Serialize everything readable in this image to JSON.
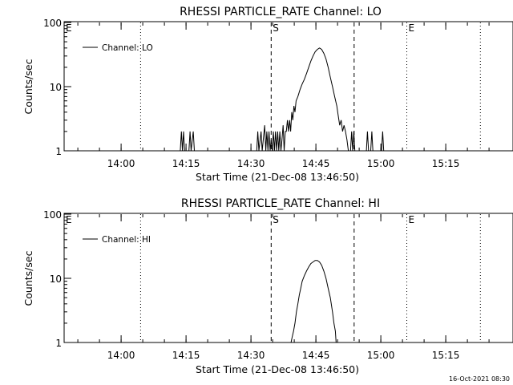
{
  "footer": {
    "timestamp": "16-Oct-2021 08:30"
  },
  "chart_data": [
    {
      "type": "line",
      "title": "RHESSI PARTICLE_RATE Channel: LO",
      "xlabel": "Start Time (21-Dec-08 13:46:50)",
      "ylabel": "Counts/sec",
      "yscale": "log",
      "xlim": [
        "13:46:50",
        "15:29:00"
      ],
      "ylim": [
        1,
        100
      ],
      "x_ticks": [
        "14:00",
        "14:15",
        "14:30",
        "14:45",
        "15:00",
        "15:15"
      ],
      "y_ticks": [
        "1",
        "10",
        "100"
      ],
      "legend": {
        "position": "top-left",
        "label": "Channel: LO"
      },
      "markers": [
        {
          "label": "E",
          "time": "13:46:50",
          "style": "dotted"
        },
        {
          "label": "",
          "time": "14:04:30",
          "style": "dotted"
        },
        {
          "label": "S",
          "time": "14:34:40",
          "style": "dashed"
        },
        {
          "label": "",
          "time": "14:53:50",
          "style": "dashed"
        },
        {
          "label": "E",
          "time": "15:06:00",
          "style": "dotted"
        },
        {
          "label": "",
          "time": "15:23:00",
          "style": "dotted"
        }
      ],
      "series": [
        {
          "name": "Channel: LO",
          "points": [
            [
              "14:13:40",
              1
            ],
            [
              "14:13:55",
              2
            ],
            [
              "14:14:10",
              1
            ],
            [
              "14:14:25",
              2
            ],
            [
              "14:14:40",
              1
            ],
            [
              "14:15:40",
              1
            ],
            [
              "14:15:55",
              2
            ],
            [
              "14:16:10",
              1
            ],
            [
              "14:16:40",
              2
            ],
            [
              "14:16:55",
              1
            ],
            [
              "14:31:20",
              1
            ],
            [
              "14:31:35",
              2
            ],
            [
              "14:31:50",
              1
            ],
            [
              "14:32:20",
              2
            ],
            [
              "14:32:35",
              1
            ],
            [
              "14:33:10",
              2.5
            ],
            [
              "14:33:25",
              1
            ],
            [
              "14:33:40",
              2
            ],
            [
              "14:33:55",
              1
            ],
            [
              "14:34:10",
              2
            ],
            [
              "14:34:25",
              1
            ],
            [
              "14:34:40",
              1.5
            ],
            [
              "14:34:55",
              1
            ],
            [
              "14:35:10",
              2
            ],
            [
              "14:35:25",
              1
            ],
            [
              "14:35:40",
              2
            ],
            [
              "14:35:55",
              1
            ],
            [
              "14:36:10",
              2
            ],
            [
              "14:36:25",
              1
            ],
            [
              "14:36:40",
              2
            ],
            [
              "14:36:55",
              1
            ],
            [
              "14:37:10",
              1.5
            ],
            [
              "14:37:25",
              2.5
            ],
            [
              "14:37:40",
              1
            ],
            [
              "14:37:55",
              2
            ],
            [
              "14:38:10",
              2
            ],
            [
              "14:38:25",
              3
            ],
            [
              "14:38:40",
              2
            ],
            [
              "14:38:55",
              3
            ],
            [
              "14:39:10",
              2
            ],
            [
              "14:39:25",
              4
            ],
            [
              "14:39:40",
              3
            ],
            [
              "14:39:55",
              5
            ],
            [
              "14:40:10",
              4
            ],
            [
              "14:40:25",
              6
            ],
            [
              "14:40:50",
              7
            ],
            [
              "14:41:20",
              9
            ],
            [
              "14:41:50",
              11
            ],
            [
              "14:42:20",
              13
            ],
            [
              "14:42:50",
              16
            ],
            [
              "14:43:20",
              20
            ],
            [
              "14:43:50",
              25
            ],
            [
              "14:44:20",
              30
            ],
            [
              "14:44:50",
              35
            ],
            [
              "14:45:20",
              38
            ],
            [
              "14:45:50",
              40
            ],
            [
              "14:46:20",
              38
            ],
            [
              "14:46:50",
              33
            ],
            [
              "14:47:20",
              27
            ],
            [
              "14:47:50",
              20
            ],
            [
              "14:48:20",
              14
            ],
            [
              "14:48:50",
              10
            ],
            [
              "14:49:20",
              7
            ],
            [
              "14:49:50",
              5
            ],
            [
              "14:50:10",
              3.5
            ],
            [
              "14:50:30",
              2.5
            ],
            [
              "14:50:50",
              3
            ],
            [
              "14:51:10",
              2
            ],
            [
              "14:51:30",
              2.5
            ],
            [
              "14:51:50",
              2
            ],
            [
              "14:52:10",
              1.5
            ],
            [
              "14:52:30",
              1
            ],
            [
              "14:53:00",
              1
            ],
            [
              "14:53:15",
              2
            ],
            [
              "14:53:30",
              1
            ],
            [
              "14:53:45",
              2
            ],
            [
              "14:54:00",
              1
            ],
            [
              "14:56:40",
              1
            ],
            [
              "14:56:55",
              2
            ],
            [
              "14:57:10",
              1
            ],
            [
              "14:57:40",
              1
            ],
            [
              "14:57:55",
              2
            ],
            [
              "14:58:10",
              1
            ],
            [
              "15:00:10",
              1
            ],
            [
              "15:00:25",
              2
            ],
            [
              "15:00:40",
              1
            ]
          ]
        }
      ]
    },
    {
      "type": "line",
      "title": "RHESSI PARTICLE_RATE Channel: HI",
      "xlabel": "Start Time (21-Dec-08 13:46:50)",
      "ylabel": "Counts/sec",
      "yscale": "log",
      "xlim": [
        "13:46:50",
        "15:29:00"
      ],
      "ylim": [
        1,
        100
      ],
      "x_ticks": [
        "14:00",
        "14:15",
        "14:30",
        "14:45",
        "15:00",
        "15:15"
      ],
      "y_ticks": [
        "1",
        "10",
        "100"
      ],
      "legend": {
        "position": "top-left",
        "label": "Channel: HI"
      },
      "markers": [
        {
          "label": "E",
          "time": "13:46:50",
          "style": "dotted"
        },
        {
          "label": "",
          "time": "14:04:30",
          "style": "dotted"
        },
        {
          "label": "S",
          "time": "14:34:40",
          "style": "dashed"
        },
        {
          "label": "",
          "time": "14:53:50",
          "style": "dashed"
        },
        {
          "label": "E",
          "time": "15:06:00",
          "style": "dotted"
        },
        {
          "label": "",
          "time": "15:23:00",
          "style": "dotted"
        }
      ],
      "series": [
        {
          "name": "Channel: HI",
          "points": [
            [
              "14:39:15",
              1
            ],
            [
              "14:39:30",
              1.2
            ],
            [
              "14:39:50",
              1.5
            ],
            [
              "14:40:10",
              2
            ],
            [
              "14:40:30",
              3
            ],
            [
              "14:40:50",
              4
            ],
            [
              "14:41:10",
              5.5
            ],
            [
              "14:41:30",
              7
            ],
            [
              "14:41:50",
              9
            ],
            [
              "14:42:20",
              11
            ],
            [
              "14:42:50",
              13
            ],
            [
              "14:43:20",
              15
            ],
            [
              "14:43:50",
              17
            ],
            [
              "14:44:20",
              18
            ],
            [
              "14:44:50",
              19
            ],
            [
              "14:45:20",
              19
            ],
            [
              "14:45:50",
              18
            ],
            [
              "14:46:20",
              16
            ],
            [
              "14:46:50",
              13
            ],
            [
              "14:47:20",
              10
            ],
            [
              "14:47:50",
              7
            ],
            [
              "14:48:20",
              5
            ],
            [
              "14:48:50",
              3
            ],
            [
              "14:49:10",
              2
            ],
            [
              "14:49:30",
              1.5
            ],
            [
              "14:49:40",
              1
            ]
          ]
        }
      ]
    }
  ]
}
